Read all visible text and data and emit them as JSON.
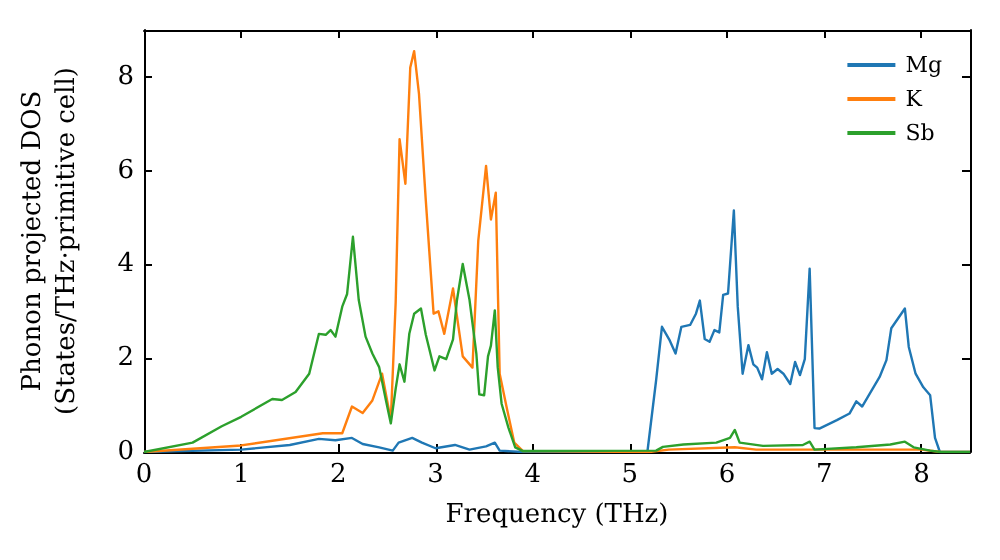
{
  "chart_data": {
    "type": "line",
    "xlabel": "Frequency (THz)",
    "ylabel": "Phonon projected DOS\n(States/THz·primitive cell)",
    "xlim": [
      0,
      8.5
    ],
    "xticks": [
      0,
      1,
      2,
      3,
      4,
      5,
      6,
      7,
      8
    ],
    "ylim": [
      0,
      9
    ],
    "yticks": [
      0,
      2,
      4,
      6,
      8
    ],
    "grid": false,
    "legend": "top right",
    "marker": "none",
    "line_style": "solid",
    "series": [
      {
        "name": "Mg",
        "color": "#1f77b4",
        "x": [
          0,
          1.0,
          1.5,
          1.8,
          1.97,
          2.14,
          2.25,
          2.42,
          2.56,
          2.62,
          2.76,
          2.86,
          3.0,
          3.2,
          3.35,
          3.52,
          3.61,
          3.66,
          3.9,
          5.18,
          5.27,
          5.33,
          5.41,
          5.47,
          5.53,
          5.62,
          5.68,
          5.72,
          5.77,
          5.82,
          5.87,
          5.92,
          5.96,
          6.01,
          6.07,
          6.11,
          6.16,
          6.22,
          6.27,
          6.31,
          6.36,
          6.41,
          6.46,
          6.52,
          6.58,
          6.65,
          6.7,
          6.75,
          6.8,
          6.85,
          6.9,
          6.95,
          7.13,
          7.26,
          7.33,
          7.39,
          7.47,
          7.57,
          7.64,
          7.69,
          7.83,
          7.87,
          7.94,
          8.02,
          8.09,
          8.14,
          8.19,
          8.5
        ],
        "values": [
          0,
          0.05,
          0.15,
          0.28,
          0.25,
          0.3,
          0.17,
          0.1,
          0.03,
          0.2,
          0.3,
          0.2,
          0.08,
          0.15,
          0.05,
          0.12,
          0.2,
          0.03,
          0,
          0,
          1.53,
          2.67,
          2.38,
          2.1,
          2.67,
          2.71,
          2.95,
          3.23,
          2.41,
          2.35,
          2.6,
          2.55,
          3.35,
          3.38,
          5.15,
          3.1,
          1.67,
          2.28,
          1.87,
          1.8,
          1.55,
          2.13,
          1.67,
          1.77,
          1.67,
          1.45,
          1.92,
          1.64,
          1.98,
          3.91,
          0.51,
          0.5,
          0.68,
          0.82,
          1.08,
          0.97,
          1.25,
          1.6,
          1.96,
          2.64,
          3.06,
          2.24,
          1.67,
          1.38,
          1.21,
          0.3,
          0,
          0
        ]
      },
      {
        "name": "K",
        "color": "#ff7f0e",
        "x": [
          0,
          1.0,
          1.84,
          2.04,
          2.14,
          2.25,
          2.35,
          2.45,
          2.54,
          2.59,
          2.63,
          2.69,
          2.74,
          2.78,
          2.83,
          2.9,
          2.98,
          3.03,
          3.09,
          3.18,
          3.22,
          3.28,
          3.38,
          3.44,
          3.52,
          3.57,
          3.62,
          3.66,
          3.73,
          3.81,
          3.9,
          5.2,
          5.4,
          6.08,
          6.3,
          8.0,
          8.2,
          8.5
        ],
        "values": [
          0,
          0.14,
          0.4,
          0.4,
          0.97,
          0.83,
          1.1,
          1.67,
          0.68,
          3.2,
          6.67,
          5.72,
          8.2,
          8.55,
          7.63,
          5.36,
          2.95,
          3.0,
          2.52,
          3.49,
          2.9,
          2.04,
          1.8,
          4.51,
          6.1,
          4.96,
          5.53,
          1.67,
          0.97,
          0.2,
          0.02,
          0,
          0.05,
          0.1,
          0.05,
          0.05,
          0,
          0
        ]
      },
      {
        "name": "Sb",
        "color": "#2ca02c",
        "x": [
          0,
          0.5,
          0.8,
          1.0,
          1.32,
          1.42,
          1.56,
          1.7,
          1.8,
          1.87,
          1.92,
          1.97,
          2.04,
          2.09,
          2.15,
          2.21,
          2.28,
          2.35,
          2.42,
          2.49,
          2.54,
          2.59,
          2.63,
          2.68,
          2.73,
          2.78,
          2.85,
          2.9,
          2.99,
          3.04,
          3.11,
          3.18,
          3.22,
          3.28,
          3.35,
          3.42,
          3.45,
          3.5,
          3.54,
          3.57,
          3.61,
          3.64,
          3.68,
          3.75,
          3.82,
          3.9,
          5.27,
          5.34,
          5.55,
          5.89,
          6.03,
          6.08,
          6.13,
          6.37,
          6.78,
          6.85,
          6.9,
          7.33,
          7.68,
          7.83,
          7.92,
          8.09,
          8.2,
          8.5
        ],
        "values": [
          0,
          0.2,
          0.55,
          0.75,
          1.13,
          1.11,
          1.28,
          1.67,
          2.52,
          2.5,
          2.6,
          2.46,
          3.1,
          3.37,
          4.59,
          3.24,
          2.46,
          2.1,
          1.81,
          1.1,
          0.61,
          1.35,
          1.87,
          1.5,
          2.52,
          2.95,
          3.06,
          2.5,
          1.74,
          2.04,
          1.98,
          2.4,
          3.23,
          4.01,
          3.24,
          2.1,
          1.23,
          1.21,
          2.04,
          2.27,
          3.02,
          1.81,
          1.03,
          0.52,
          0.1,
          0.02,
          0.03,
          0.11,
          0.16,
          0.2,
          0.3,
          0.47,
          0.2,
          0.13,
          0.15,
          0.22,
          0.05,
          0.1,
          0.16,
          0.22,
          0.1,
          0.03,
          0,
          0
        ]
      }
    ]
  }
}
